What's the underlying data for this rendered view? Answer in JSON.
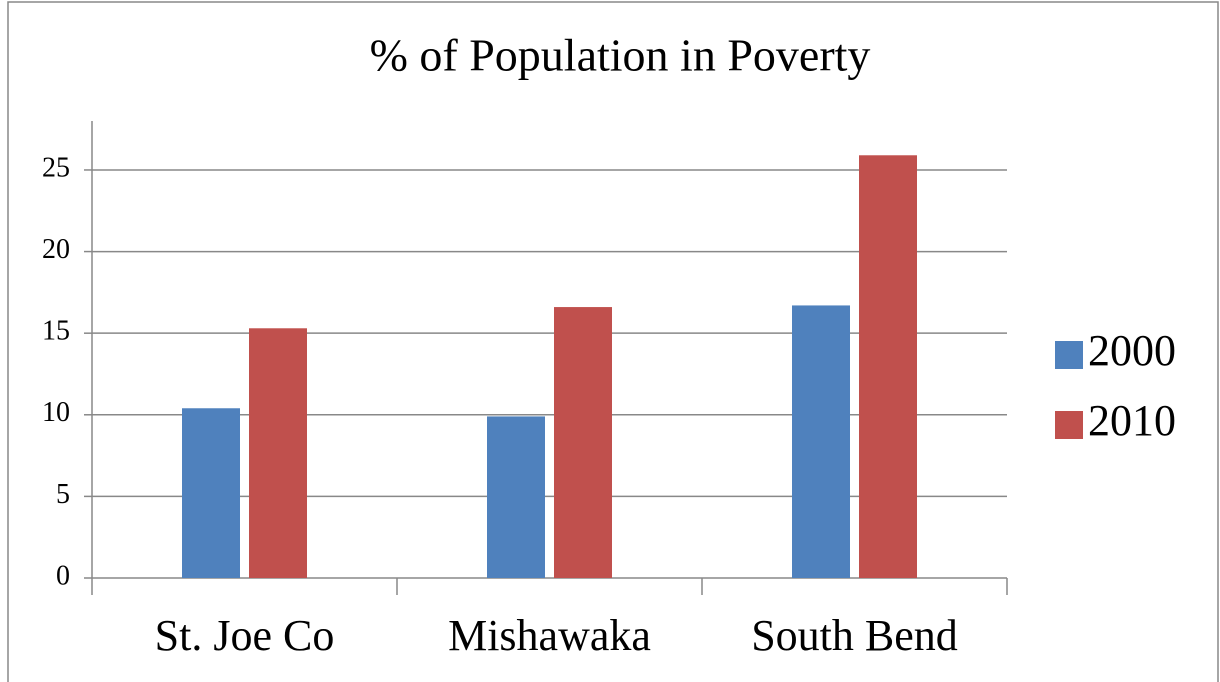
{
  "chart_data": {
    "type": "bar",
    "title": "% of Population in Poverty",
    "categories": [
      "St. Joe Co",
      "Mishawaka",
      "South Bend"
    ],
    "series": [
      {
        "name": "2000",
        "color": "#4f81bd",
        "values": [
          10.4,
          9.9,
          16.7
        ]
      },
      {
        "name": "2010",
        "color": "#c0504d",
        "values": [
          15.3,
          16.6,
          25.9
        ]
      }
    ],
    "ylim": [
      0,
      28
    ],
    "yticks": [
      0,
      5,
      10,
      15,
      20,
      25
    ],
    "grid": true,
    "legend": "right"
  }
}
